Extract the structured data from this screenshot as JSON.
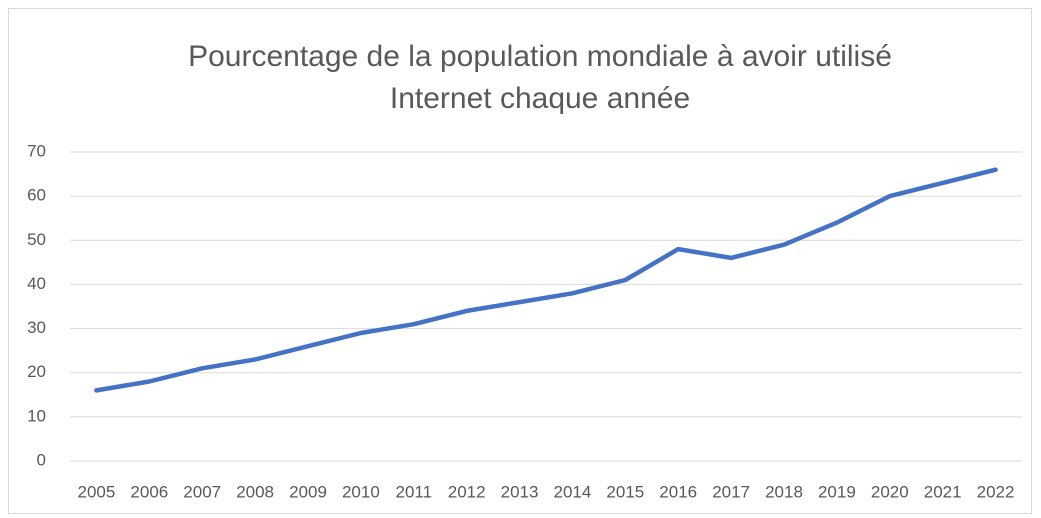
{
  "chart_data": {
    "type": "line",
    "title": [
      "Pourcentage de la population mondiale à avoir utilisé",
      "Internet chaque année"
    ],
    "categories": [
      "2005",
      "2006",
      "2007",
      "2008",
      "2009",
      "2010",
      "2011",
      "2012",
      "2013",
      "2014",
      "2015",
      "2016",
      "2017",
      "2018",
      "2019",
      "2020",
      "2021",
      "2022"
    ],
    "values": [
      16,
      18,
      21,
      23,
      26,
      29,
      31,
      34,
      36,
      38,
      41,
      48,
      46,
      49,
      54,
      60,
      63,
      66
    ],
    "color": "#4472c4",
    "ylim": [
      0,
      70
    ],
    "yticks": [
      0,
      10,
      20,
      30,
      40,
      50,
      60,
      70
    ],
    "grid": true
  }
}
